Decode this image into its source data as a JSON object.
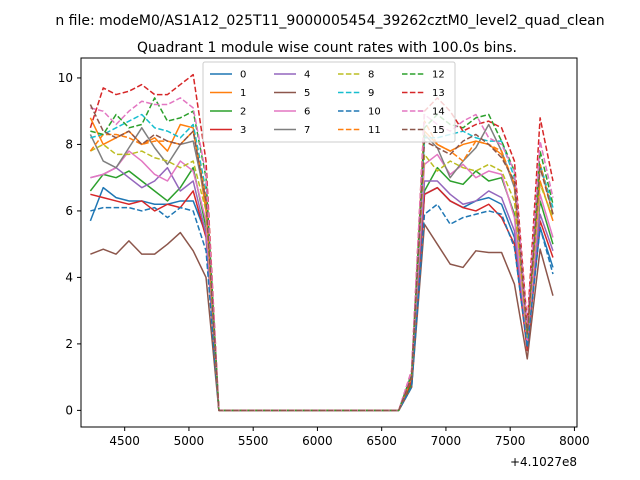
{
  "chart_data": {
    "type": "line",
    "suptitle": "n file: modeM0/AS1A12_025T11_9000005454_39262cztM0_level2_quad_clean",
    "title": "Quadrant 1 module wise count rates with 100.0s bins.",
    "xlabel": "",
    "ylabel": "",
    "x_offset_label": "+4.1027e8",
    "xlim": [
      4160,
      8020
    ],
    "ylim": [
      -0.5,
      10.6
    ],
    "xticks": [
      4500,
      5000,
      5500,
      6000,
      6500,
      7000,
      7500,
      8000
    ],
    "yticks": [
      0,
      2,
      4,
      6,
      8,
      10
    ],
    "grid": false,
    "legend_position": "upper-center",
    "legend_columns": 4,
    "x": [
      4233,
      4333,
      4433,
      4533,
      4633,
      4733,
      4833,
      4933,
      5033,
      5133,
      5233,
      5333,
      5433,
      5533,
      5633,
      5733,
      5833,
      5933,
      6033,
      6133,
      6233,
      6333,
      6433,
      6533,
      6633,
      6733,
      6833,
      6933,
      7033,
      7133,
      7233,
      7333,
      7433,
      7533,
      7633,
      7733,
      7833
    ],
    "series": [
      {
        "name": "0",
        "color": "#1f77b4",
        "dash": "solid",
        "values": [
          5.7,
          6.7,
          6.4,
          6.3,
          6.3,
          6.2,
          6.2,
          6.3,
          6.3,
          5.3,
          0,
          0,
          0,
          0,
          0,
          0,
          0,
          0,
          0,
          0,
          0,
          0,
          0,
          0,
          0,
          0.7,
          6.5,
          6.7,
          6.3,
          6.1,
          6.3,
          6.4,
          6.2,
          5.2,
          2.0,
          5.5,
          4.3
        ]
      },
      {
        "name": "1",
        "color": "#ff7f0e",
        "dash": "solid",
        "values": [
          8.8,
          8.0,
          8.2,
          8.4,
          8.0,
          8.2,
          7.8,
          8.6,
          8.5,
          6.0,
          0,
          0,
          0,
          0,
          0,
          0,
          0,
          0,
          0,
          0,
          0,
          0,
          0,
          0,
          0,
          1.0,
          8.4,
          8.0,
          7.8,
          8.0,
          8.1,
          8.0,
          7.7,
          6.8,
          2.4,
          6.9,
          5.7
        ]
      },
      {
        "name": "2",
        "color": "#2ca02c",
        "dash": "solid",
        "values": [
          6.6,
          7.1,
          7.0,
          7.2,
          6.9,
          6.6,
          6.3,
          6.7,
          7.3,
          5.5,
          0,
          0,
          0,
          0,
          0,
          0,
          0,
          0,
          0,
          0,
          0,
          0,
          0,
          0,
          0,
          0.8,
          6.6,
          7.3,
          6.9,
          6.8,
          7.2,
          6.9,
          7.0,
          5.9,
          2.2,
          6.3,
          5.0
        ]
      },
      {
        "name": "3",
        "color": "#d62728",
        "dash": "solid",
        "values": [
          6.5,
          6.4,
          6.3,
          6.2,
          6.3,
          6.0,
          6.2,
          6.1,
          6.6,
          5.2,
          0,
          0,
          0,
          0,
          0,
          0,
          0,
          0,
          0,
          0,
          0,
          0,
          0,
          0,
          0,
          0.9,
          6.5,
          6.7,
          6.3,
          6.1,
          6.0,
          6.2,
          5.8,
          5.0,
          1.8,
          5.7,
          4.6
        ]
      },
      {
        "name": "4",
        "color": "#9467bd",
        "dash": "solid",
        "values": [
          7.0,
          7.1,
          7.3,
          7.0,
          6.7,
          6.9,
          7.3,
          6.6,
          6.9,
          5.3,
          0,
          0,
          0,
          0,
          0,
          0,
          0,
          0,
          0,
          0,
          0,
          0,
          0,
          0,
          0,
          1.0,
          6.9,
          6.9,
          6.5,
          6.2,
          6.3,
          6.6,
          6.4,
          5.4,
          2.0,
          5.9,
          4.8
        ]
      },
      {
        "name": "5",
        "color": "#8c564b",
        "dash": "solid",
        "values": [
          4.7,
          4.85,
          4.7,
          5.1,
          4.7,
          4.7,
          5.0,
          5.35,
          4.8,
          4.0,
          0,
          0,
          0,
          0,
          0,
          0,
          0,
          0,
          0,
          0,
          0,
          0,
          0,
          0,
          0,
          0.7,
          5.6,
          5.0,
          4.4,
          4.3,
          4.8,
          4.75,
          4.75,
          3.8,
          1.55,
          4.85,
          3.45
        ]
      },
      {
        "name": "6",
        "color": "#e377c2",
        "dash": "solid",
        "values": [
          7.0,
          7.1,
          7.3,
          7.8,
          7.5,
          7.1,
          6.9,
          7.5,
          7.2,
          5.7,
          0,
          0,
          0,
          0,
          0,
          0,
          0,
          0,
          0,
          0,
          0,
          0,
          0,
          0,
          0,
          1.0,
          7.4,
          7.7,
          7.1,
          7.4,
          7.0,
          7.2,
          7.1,
          5.8,
          2.1,
          6.5,
          5.2
        ]
      },
      {
        "name": "7",
        "color": "#7f7f7f",
        "dash": "solid",
        "values": [
          8.3,
          7.5,
          7.3,
          7.9,
          8.5,
          7.9,
          7.4,
          8.0,
          8.1,
          6.3,
          0,
          0,
          0,
          0,
          0,
          0,
          0,
          0,
          0,
          0,
          0,
          0,
          0,
          0,
          0,
          1.0,
          8.3,
          7.9,
          7.0,
          7.5,
          7.9,
          8.6,
          7.8,
          6.7,
          2.3,
          7.4,
          5.9
        ]
      },
      {
        "name": "8",
        "color": "#bcbd22",
        "dash": "dashed",
        "values": [
          7.8,
          8.0,
          7.7,
          7.7,
          7.8,
          7.6,
          7.5,
          7.3,
          7.5,
          6.0,
          0,
          0,
          0,
          0,
          0,
          0,
          0,
          0,
          0,
          0,
          0,
          0,
          0,
          0,
          0,
          1.0,
          7.7,
          7.2,
          7.5,
          7.3,
          7.2,
          7.4,
          7.2,
          6.3,
          2.2,
          6.8,
          5.8
        ]
      },
      {
        "name": "9",
        "color": "#17becf",
        "dash": "dashed",
        "values": [
          8.2,
          8.3,
          8.5,
          8.7,
          8.9,
          8.5,
          8.4,
          8.2,
          8.6,
          6.6,
          0,
          0,
          0,
          0,
          0,
          0,
          0,
          0,
          0,
          0,
          0,
          0,
          0,
          0,
          0,
          1.1,
          8.2,
          8.2,
          8.3,
          8.4,
          8.2,
          8.1,
          8.1,
          7.0,
          2.4,
          7.4,
          6.1
        ]
      },
      {
        "name": "10",
        "color": "#1f77b4",
        "dash": "dashed",
        "values": [
          6.0,
          6.1,
          6.1,
          6.1,
          6.0,
          6.1,
          5.8,
          6.1,
          6.0,
          4.8,
          0,
          0,
          0,
          0,
          0,
          0,
          0,
          0,
          0,
          0,
          0,
          0,
          0,
          0,
          0,
          0.7,
          5.9,
          6.2,
          5.6,
          5.8,
          5.9,
          6.0,
          5.9,
          4.9,
          1.9,
          5.5,
          4.1
        ]
      },
      {
        "name": "11",
        "color": "#ff7f0e",
        "dash": "dashed",
        "values": [
          7.8,
          8.3,
          8.3,
          8.2,
          8.0,
          8.1,
          8.1,
          8.0,
          8.4,
          6.4,
          0,
          0,
          0,
          0,
          0,
          0,
          0,
          0,
          0,
          0,
          0,
          0,
          0,
          0,
          0,
          1.0,
          8.7,
          8.0,
          7.8,
          7.5,
          8.1,
          8.0,
          7.8,
          6.8,
          2.3,
          7.4,
          5.9
        ]
      },
      {
        "name": "12",
        "color": "#2ca02c",
        "dash": "dashed",
        "values": [
          8.4,
          8.3,
          8.9,
          8.5,
          8.6,
          9.4,
          8.7,
          8.8,
          9.0,
          7.0,
          0,
          0,
          0,
          0,
          0,
          0,
          0,
          0,
          0,
          0,
          0,
          0,
          0,
          0,
          0,
          1.1,
          8.5,
          8.9,
          8.6,
          8.5,
          8.8,
          8.9,
          8.1,
          7.2,
          2.4,
          7.8,
          6.2
        ]
      },
      {
        "name": "13",
        "color": "#d62728",
        "dash": "dashed",
        "values": [
          8.5,
          9.7,
          9.5,
          9.6,
          9.8,
          9.5,
          9.5,
          9.8,
          10.1,
          7.5,
          0,
          0,
          0,
          0,
          0,
          0,
          0,
          0,
          0,
          0,
          0,
          0,
          0,
          0,
          0,
          1.2,
          9.0,
          9.4,
          9.0,
          8.4,
          8.6,
          8.7,
          8.5,
          7.5,
          2.6,
          8.8,
          6.9
        ]
      },
      {
        "name": "14",
        "color": "#e377c2",
        "dash": "dashed",
        "values": [
          9.1,
          9.0,
          8.6,
          9.0,
          9.3,
          9.2,
          9.2,
          9.4,
          9.1,
          7.1,
          0,
          0,
          0,
          0,
          0,
          0,
          0,
          0,
          0,
          0,
          0,
          0,
          0,
          0,
          0,
          1.2,
          8.9,
          8.6,
          8.4,
          8.7,
          8.9,
          8.2,
          8.0,
          7.2,
          2.5,
          8.1,
          6.4
        ]
      },
      {
        "name": "15",
        "color": "#8c564b",
        "dash": "dashed",
        "values": [
          9.2,
          8.4,
          8.2,
          8.4,
          8.0,
          8.3,
          8.1,
          8.0,
          8.4,
          6.3,
          0,
          0,
          0,
          0,
          0,
          0,
          0,
          0,
          0,
          0,
          0,
          0,
          0,
          0,
          0,
          1.0,
          8.1,
          7.9,
          7.7,
          8.1,
          8.3,
          8.0,
          7.6,
          6.9,
          2.3,
          7.3,
          5.9
        ]
      }
    ]
  }
}
